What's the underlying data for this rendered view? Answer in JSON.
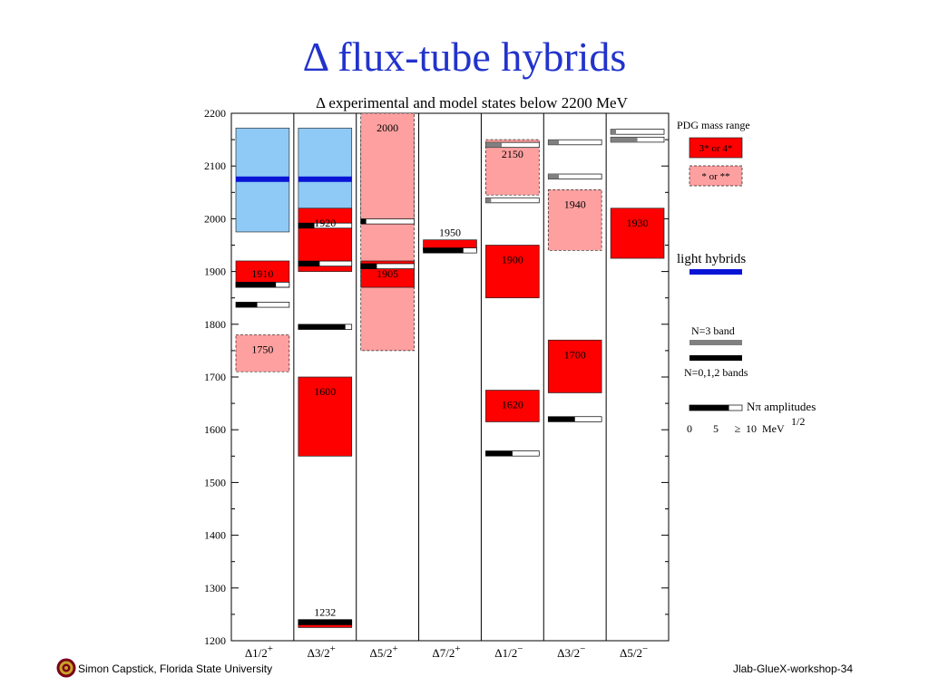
{
  "page": {
    "title": "Δ flux-tube hybrids",
    "footer_left": "Simon Capstick, Florida State University",
    "footer_right": "Jlab-GlueX-workshop-34"
  },
  "colors": {
    "pdg_strong": "#ff0000",
    "pdg_weak": "#ffa0a0",
    "hybrid_range": "#8ecaf5",
    "light_hybrid": "#0a14d6",
    "n3_band": "#808080",
    "n012_band": "#000000",
    "title": "#2233cc"
  },
  "chart_data": {
    "type": "level-diagram",
    "title": "Δ  experimental and model states below 2200 MeV",
    "ylim": [
      1200,
      2200
    ],
    "yticks": [
      "1200",
      "1300",
      "1400",
      "1500",
      "1600",
      "1700",
      "1800",
      "1900",
      "2000",
      "2100",
      "2200"
    ],
    "columns": [
      {
        "label": "Δ1/2",
        "sup": "+",
        "hybrid_ranges": [
          [
            1975,
            2172
          ]
        ],
        "light_hybrids": [
          2075
        ],
        "pdg": [
          {
            "label": "1910",
            "low": 1870,
            "high": 1920,
            "rating": "strong"
          },
          {
            "label": "1750",
            "low": 1710,
            "high": 1780,
            "rating": "weak"
          }
        ],
        "model_states": [
          {
            "mass": 1875,
            "band": "n012",
            "amplitude": 0.75
          },
          {
            "mass": 1837,
            "band": "n012",
            "amplitude": 0.4
          }
        ]
      },
      {
        "label": "Δ3/2",
        "sup": "+",
        "hybrid_ranges": [
          [
            2000,
            2172
          ]
        ],
        "light_hybrids": [
          2075
        ],
        "pdg": [
          {
            "label": "1920",
            "low": 1900,
            "high": 2020,
            "rating": "strong"
          },
          {
            "label": "1600",
            "low": 1550,
            "high": 1700,
            "rating": "strong"
          },
          {
            "label": "1232",
            "low": 1225,
            "high": 1240,
            "rating": "strong"
          }
        ],
        "model_states": [
          {
            "mass": 1987,
            "band": "n012",
            "amplitude": 0.3
          },
          {
            "mass": 1915,
            "band": "n012",
            "amplitude": 0.4
          },
          {
            "mass": 1795,
            "band": "n012",
            "amplitude": 0.88
          },
          {
            "mass": 1235,
            "band": "n012",
            "amplitude": 1.0
          }
        ]
      },
      {
        "label": "Δ5/2",
        "sup": "+",
        "hybrid_ranges": [
          [
            1990,
            2172
          ]
        ],
        "light_hybrids": [
          2075
        ],
        "pdg": [
          {
            "label": "2000",
            "low": 1750,
            "high": 2200,
            "rating": "weak"
          },
          {
            "label": "1905",
            "low": 1870,
            "high": 1920,
            "rating": "strong"
          }
        ],
        "model_states": [
          {
            "mass": 1995,
            "band": "n012",
            "amplitude": 0.1
          },
          {
            "mass": 1910,
            "band": "n012",
            "amplitude": 0.3
          }
        ]
      },
      {
        "label": "Δ7/2",
        "sup": "+",
        "hybrid_ranges": [],
        "light_hybrids": [],
        "pdg": [
          {
            "label": "1950",
            "low": 1940,
            "high": 1960,
            "rating": "strong"
          }
        ],
        "model_states": [
          {
            "mass": 1940,
            "band": "n012",
            "amplitude": 0.75
          }
        ]
      },
      {
        "label": "Δ1/2",
        "sup": "−",
        "hybrid_ranges": [],
        "light_hybrids": [],
        "pdg": [
          {
            "label": "2150",
            "low": 2045,
            "high": 2150,
            "rating": "weak"
          },
          {
            "label": "1900",
            "low": 1850,
            "high": 1950,
            "rating": "strong"
          },
          {
            "label": "1620",
            "low": 1615,
            "high": 1675,
            "rating": "strong"
          }
        ],
        "model_states": [
          {
            "mass": 2140,
            "band": "n3",
            "amplitude": 0.3
          },
          {
            "mass": 2035,
            "band": "n3",
            "amplitude": 0.1
          },
          {
            "mass": 1555,
            "band": "n012",
            "amplitude": 0.5
          }
        ]
      },
      {
        "label": "Δ3/2",
        "sup": "−",
        "hybrid_ranges": [],
        "light_hybrids": [],
        "pdg": [
          {
            "label": "1940",
            "low": 1940,
            "high": 2055,
            "rating": "weak"
          },
          {
            "label": "1700",
            "low": 1670,
            "high": 1770,
            "rating": "strong"
          }
        ],
        "model_states": [
          {
            "mass": 2145,
            "band": "n3",
            "amplitude": 0.2
          },
          {
            "mass": 2080,
            "band": "n3",
            "amplitude": 0.2
          },
          {
            "mass": 1620,
            "band": "n012",
            "amplitude": 0.5
          }
        ]
      },
      {
        "label": "Δ5/2",
        "sup": "−",
        "hybrid_ranges": [],
        "light_hybrids": [],
        "pdg": [
          {
            "label": "1930",
            "low": 1925,
            "high": 2020,
            "rating": "strong"
          }
        ],
        "model_states": [
          {
            "mass": 2165,
            "band": "n3",
            "amplitude": 0.1
          },
          {
            "mass": 2150,
            "band": "n3",
            "amplitude": 0.5
          }
        ]
      }
    ],
    "legend": {
      "pdg_title": "PDG mass range",
      "strong_label": "3* or 4*",
      "weak_label": "* or **",
      "light_hybrids_label": "light hybrids",
      "n3_label": "N=3 band",
      "n012_label": "N=0,1,2 bands",
      "amp_label_prefix": "N",
      "amp_label_pi": "π",
      "amp_label_suffix": " amplitudes",
      "amp_ticks": [
        "0",
        "5"
      ],
      "amp_tick_last": "10",
      "amp_ge": "≥",
      "amp_unit": "MeV",
      "amp_unit_exp": "1/2"
    }
  }
}
